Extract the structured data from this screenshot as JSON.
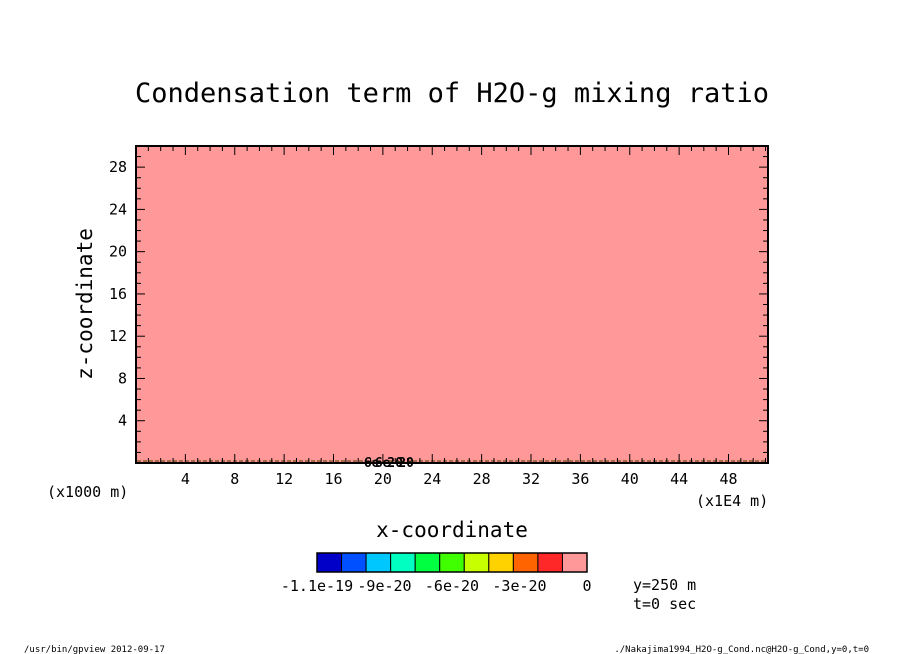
{
  "chart_data": {
    "type": "heatmap",
    "title": "Condensation term of H2O-g mixing ratio",
    "xlabel": "x-coordinate",
    "ylabel": "z-coordinate",
    "x_scale_note": "(x1E4 m)",
    "y_scale_note": "(x1000 m)",
    "xlim": [
      0,
      51.2
    ],
    "ylim": [
      0,
      30
    ],
    "x_ticks": [
      4,
      8,
      12,
      16,
      20,
      24,
      28,
      32,
      36,
      40,
      44,
      48
    ],
    "y_ticks": [
      4,
      8,
      12,
      16,
      20,
      24,
      28
    ],
    "field_fill": "#ff9999",
    "contour_label": "-6e-20",
    "colorbar": {
      "colors": [
        "#0000c8",
        "#0050ff",
        "#00c8ff",
        "#00ffc0",
        "#00ff40",
        "#40ff00",
        "#c8ff00",
        "#ffd200",
        "#ff6400",
        "#ff2828",
        "#ff9999"
      ],
      "tick_labels": [
        "-1.1e-19",
        "-9e-20",
        "-6e-20",
        "-3e-20",
        "0"
      ]
    },
    "annotations": [
      "y=250 m",
      "t=0 sec"
    ]
  },
  "footer": {
    "left": "/usr/bin/gpview  2012-09-17",
    "right": "./Nakajima1994_H2O-g_Cond.nc@H2O-g_Cond,y=0,t=0"
  }
}
